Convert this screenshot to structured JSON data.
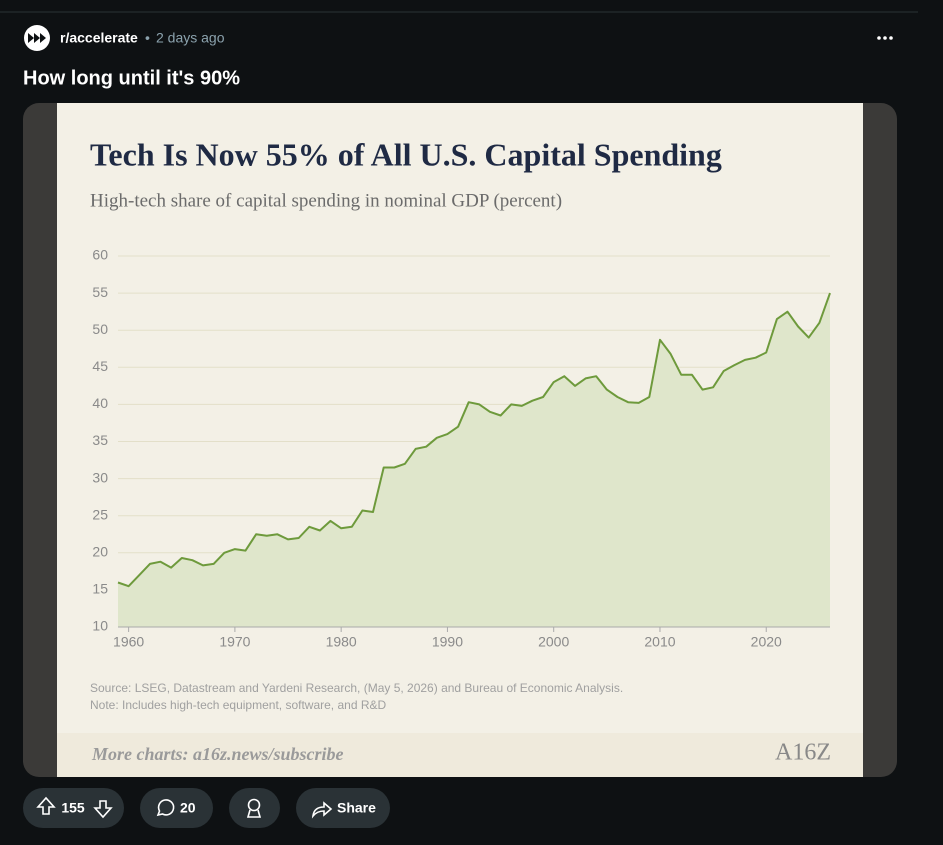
{
  "post": {
    "subreddit": "r/accelerate",
    "separator": "•",
    "time": "2 days ago",
    "title": "How long until it's 90%",
    "votes": 155,
    "comments": 20,
    "share": "Share"
  },
  "chart_data": {
    "type": "area",
    "title": "Tech Is Now 55% of All U.S. Capital Spending",
    "subtitle": "High-tech share of capital spending in nominal GDP (percent)",
    "source": "Source: LSEG, Datastream and Yardeni Research, (May 5, 2026) and Bureau of Economic Analysis.",
    "note": "Note: Includes high-tech equipment, software, and R&D",
    "footer": "More charts: a16z.news/subscribe",
    "logo": "A16Z",
    "x": [
      1959,
      1960,
      1961,
      1962,
      1963,
      1964,
      1965,
      1966,
      1967,
      1968,
      1969,
      1970,
      1971,
      1972,
      1973,
      1974,
      1975,
      1976,
      1977,
      1978,
      1979,
      1980,
      1981,
      1982,
      1983,
      1984,
      1985,
      1986,
      1987,
      1988,
      1989,
      1990,
      1991,
      1992,
      1993,
      1994,
      1995,
      1996,
      1997,
      1998,
      1999,
      2000,
      2001,
      2002,
      2003,
      2004,
      2005,
      2006,
      2007,
      2008,
      2009,
      2010,
      2011,
      2012,
      2013,
      2014,
      2015,
      2016,
      2017,
      2018,
      2019,
      2020,
      2021,
      2022,
      2023,
      2024,
      2025,
      2026
    ],
    "values": [
      16,
      15.5,
      17,
      18.5,
      18.8,
      18,
      19.3,
      19,
      18.3,
      18.5,
      20,
      20.5,
      20.3,
      22.5,
      22.3,
      22.5,
      21.8,
      22,
      23.5,
      23,
      24.3,
      23.3,
      23.5,
      25.7,
      25.5,
      31.5,
      31.5,
      32,
      34,
      34.3,
      35.5,
      36,
      37,
      40.3,
      40,
      39,
      38.5,
      40,
      39.8,
      40.5,
      41,
      43,
      43.8,
      42.5,
      43.5,
      43.8,
      42,
      41,
      40.3,
      40.2,
      41,
      48.7,
      46.8,
      44,
      44,
      42,
      42.3,
      44.5,
      45.3,
      46,
      46.3,
      47,
      51.5,
      52.5,
      50.5,
      49,
      51,
      55
    ],
    "color": "#6e9a3c",
    "xlim": [
      1959,
      2026
    ],
    "xticks": [
      1960,
      1970,
      1980,
      1990,
      2000,
      2010,
      2020
    ],
    "ylim": [
      10,
      60
    ],
    "yticks": [
      10,
      15,
      20,
      25,
      30,
      35,
      40,
      45,
      50,
      55,
      60
    ],
    "grid": true
  }
}
